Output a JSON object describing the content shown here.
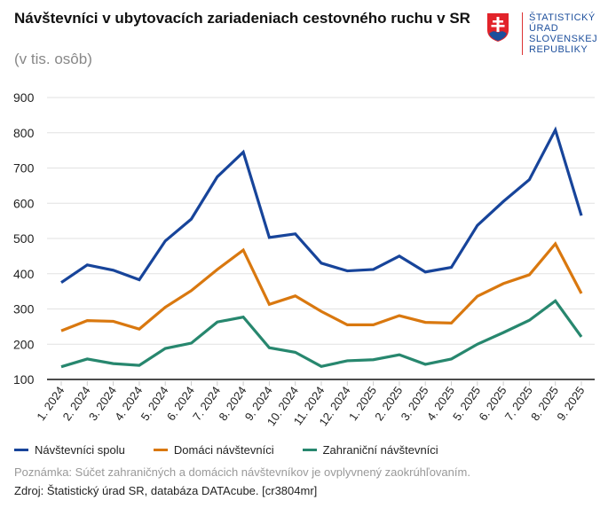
{
  "title": "Návštevníci v ubytovacích zariadeniach cestovného ruchu v SR",
  "subtitle": "(v tis. osôb)",
  "logo_text": [
    "ŠTATISTICKÝ",
    "ÚRAD",
    "SLOVENSKEJ",
    "REPUBLIKY"
  ],
  "note": "Poznámka: Súčet zahraničných a domácich návštevníkov je ovplyvnený zaokrúhľovaním.",
  "source": "Zdroj: Štatistický úrad SR, databáza DATAcube. [cr3804mr]",
  "chart_data": {
    "type": "line",
    "categories": [
      "1. 2024",
      "2. 2024",
      "3. 2024",
      "4. 2024",
      "5. 2024",
      "6. 2024",
      "7. 2024",
      "8. 2024",
      "9. 2024",
      "10. 2024",
      "11. 2024",
      "12. 2024",
      "1. 2025",
      "2. 2025",
      "3. 2025",
      "4. 2025",
      "5. 2025",
      "6. 2025",
      "7. 2025",
      "8. 2025",
      "9. 2025"
    ],
    "ylim": [
      100,
      900
    ],
    "yticks": [
      "100",
      "200",
      "300",
      "400",
      "500",
      "600",
      "700",
      "800",
      "900"
    ],
    "grid": true,
    "legend": "bottom",
    "series": [
      {
        "name": "Návštevníci spolu",
        "color": "#17449a",
        "values": [
          375,
          425,
          410,
          383,
          493,
          555,
          675,
          745,
          503,
          513,
          430,
          408,
          412,
          450,
          405,
          418,
          537,
          605,
          667,
          808,
          565
        ]
      },
      {
        "name": "Domáci návštevníci",
        "color": "#d9780f",
        "values": [
          238,
          267,
          265,
          243,
          305,
          352,
          412,
          467,
          313,
          337,
          293,
          255,
          255,
          281,
          262,
          260,
          336,
          372,
          397,
          485,
          344
        ]
      },
      {
        "name": "Zahraniční návštevníci",
        "color": "#27876e",
        "values": [
          136,
          158,
          145,
          140,
          188,
          203,
          263,
          277,
          190,
          177,
          137,
          153,
          156,
          170,
          143,
          158,
          200,
          233,
          268,
          323,
          221
        ]
      }
    ]
  }
}
